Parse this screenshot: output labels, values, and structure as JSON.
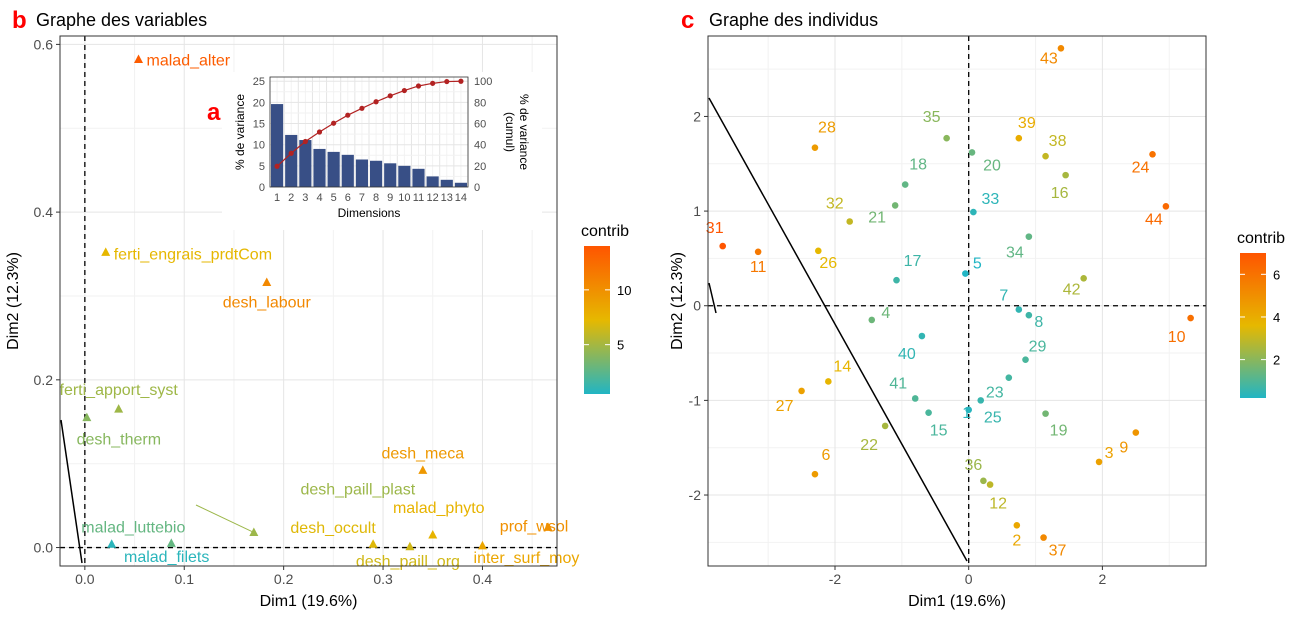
{
  "panel_b": {
    "letter": "b",
    "title": "Graphe des variables"
  },
  "panel_a": {
    "letter": "a"
  },
  "panel_c": {
    "letter": "c",
    "title": "Graphe des individus"
  },
  "colors": {
    "low": "#21b5c4",
    "mid": "#e6b800",
    "high": "#ff5500",
    "panel_letter": "#ff0000",
    "bar": "#384f86",
    "cumul_line": "#b22222"
  },
  "chart_data": [
    {
      "id": "variables",
      "type": "scatter",
      "xlabel": "Dim1 (19.6%)",
      "ylabel": "Dim2 (12.3%)",
      "xlim": [
        -0.025,
        0.475
      ],
      "ylim": [
        -0.022,
        0.61
      ],
      "xticks": [
        0.0,
        0.1,
        0.2,
        0.3,
        0.4
      ],
      "yticks": [
        0.0,
        0.2,
        0.4,
        0.6
      ],
      "tick_labels_x": [
        "0.0",
        "0.1",
        "0.2",
        "0.3",
        "0.4"
      ],
      "tick_labels_y": [
        "0.0",
        "0.2",
        "0.4",
        "0.6"
      ],
      "grid": true,
      "marker": "triangle",
      "legend": {
        "title": "contrib",
        "ticks": [
          5,
          10
        ],
        "tick_labels": [
          "5",
          "10"
        ],
        "range": [
          0.5,
          14
        ],
        "placement": "right"
      },
      "points": [
        {
          "label": "malad_alter",
          "x": 0.054,
          "y": 0.582,
          "contrib": 13.5
        },
        {
          "label": "ferti_engrais_prdtCom",
          "x": 0.021,
          "y": 0.352,
          "contrib": 7.3
        },
        {
          "label": "desh_labour",
          "x": 0.183,
          "y": 0.316,
          "contrib": 10.5
        },
        {
          "label": "ferti_apport_syst",
          "x": 0.034,
          "y": 0.165,
          "contrib": 4.8
        },
        {
          "label": "desh_therm",
          "x": 0.002,
          "y": 0.155,
          "contrib": 4.0
        },
        {
          "label": "desh_meca",
          "x": 0.34,
          "y": 0.092,
          "contrib": 9.4
        },
        {
          "label": "desh_paill_plast",
          "x": 0.17,
          "y": 0.018,
          "contrib": 4.7
        },
        {
          "label": "malad_phyto",
          "x": 0.35,
          "y": 0.015,
          "contrib": 7.6
        },
        {
          "label": "malad_luttebio",
          "x": 0.087,
          "y": 0.005,
          "contrib": 2.8
        },
        {
          "label": "desh_occult",
          "x": 0.29,
          "y": 0.004,
          "contrib": 7.0
        },
        {
          "label": "prof_wsol",
          "x": 0.466,
          "y": 0.024,
          "contrib": 10.0
        },
        {
          "label": "malad_filets",
          "x": 0.027,
          "y": 0.004,
          "contrib": 0.8
        },
        {
          "label": "desh_paill_org",
          "x": 0.327,
          "y": 0.001,
          "contrib": 6.5
        },
        {
          "label": "inter_surf_moy",
          "x": 0.4,
          "y": 0.002,
          "contrib": 8.5
        }
      ]
    },
    {
      "id": "scree",
      "type": "bar",
      "xlabel": "Dimensions",
      "ylabel": "% de variance",
      "y2label": "% de variance (cumul)",
      "categories": [
        "1",
        "2",
        "3",
        "4",
        "5",
        "6",
        "7",
        "8",
        "9",
        "10",
        "11",
        "12",
        "13",
        "14"
      ],
      "values": [
        19.6,
        12.3,
        11.1,
        9.0,
        8.3,
        7.6,
        6.5,
        6.2,
        5.6,
        5.0,
        4.3,
        2.5,
        1.7,
        1.0
      ],
      "cumulative": [
        19.6,
        31.9,
        43.0,
        52.0,
        60.3,
        67.9,
        74.4,
        80.6,
        86.2,
        91.2,
        95.5,
        98.0,
        99.7,
        100.0
      ],
      "ylim": [
        0,
        26
      ],
      "y2lim": [
        0,
        104
      ],
      "yticks": [
        0,
        5,
        10,
        15,
        20,
        25
      ],
      "y2ticks": [
        0,
        20,
        40,
        60,
        80,
        100
      ],
      "grid": true
    },
    {
      "id": "individuals",
      "type": "scatter",
      "xlabel": "Dim1 (19.6%)",
      "ylabel": "Dim2 (12.3%)",
      "xlim": [
        -3.9,
        3.55
      ],
      "ylim": [
        -2.75,
        2.85
      ],
      "xticks": [
        -2,
        0,
        2
      ],
      "yticks": [
        -2,
        -1,
        0,
        1,
        2
      ],
      "tick_labels_x": [
        "-2",
        "0",
        "2"
      ],
      "tick_labels_y": [
        "-2",
        "-1",
        "0",
        "1",
        "2"
      ],
      "grid": true,
      "marker": "circle",
      "legend": {
        "title": "contrib",
        "ticks": [
          2,
          4,
          6
        ],
        "tick_labels": [
          "2",
          "4",
          "6"
        ],
        "range": [
          0.2,
          7.0
        ],
        "placement": "right"
      },
      "points": [
        {
          "label": "43",
          "x": 1.38,
          "y": 2.72,
          "contrib": 5.2
        },
        {
          "label": "39",
          "x": 0.75,
          "y": 1.77,
          "contrib": 4.0
        },
        {
          "label": "38",
          "x": 1.15,
          "y": 1.58,
          "contrib": 3.0
        },
        {
          "label": "28",
          "x": -2.3,
          "y": 1.67,
          "contrib": 4.6
        },
        {
          "label": "35",
          "x": -0.33,
          "y": 1.77,
          "contrib": 2.0
        },
        {
          "label": "20",
          "x": 0.05,
          "y": 1.62,
          "contrib": 1.4
        },
        {
          "label": "24",
          "x": 2.75,
          "y": 1.6,
          "contrib": 6.0
        },
        {
          "label": "18",
          "x": -0.95,
          "y": 1.28,
          "contrib": 1.3
        },
        {
          "label": "16",
          "x": 1.45,
          "y": 1.38,
          "contrib": 2.5
        },
        {
          "label": "33",
          "x": 0.07,
          "y": 0.99,
          "contrib": 0.4
        },
        {
          "label": "44",
          "x": 2.95,
          "y": 1.05,
          "contrib": 6.3
        },
        {
          "label": "32",
          "x": -1.78,
          "y": 0.89,
          "contrib": 3.0
        },
        {
          "label": "21",
          "x": -1.1,
          "y": 1.06,
          "contrib": 1.6
        },
        {
          "label": "31",
          "x": -3.68,
          "y": 0.63,
          "contrib": 7.0
        },
        {
          "label": "11",
          "x": -3.15,
          "y": 0.57,
          "contrib": 5.8
        },
        {
          "label": "26",
          "x": -2.25,
          "y": 0.58,
          "contrib": 3.6
        },
        {
          "label": "34",
          "x": 0.9,
          "y": 0.73,
          "contrib": 1.3
        },
        {
          "label": "17",
          "x": -1.08,
          "y": 0.27,
          "contrib": 0.7
        },
        {
          "label": "5",
          "x": -0.05,
          "y": 0.34,
          "contrib": 0.2
        },
        {
          "label": "42",
          "x": 1.72,
          "y": 0.29,
          "contrib": 2.6
        },
        {
          "label": "7",
          "x": 0.75,
          "y": -0.04,
          "contrib": 0.5
        },
        {
          "label": "8",
          "x": 0.9,
          "y": -0.1,
          "contrib": 0.7
        },
        {
          "label": "4",
          "x": -1.45,
          "y": -0.15,
          "contrib": 1.5
        },
        {
          "label": "10",
          "x": 3.32,
          "y": -0.13,
          "contrib": 6.1
        },
        {
          "label": "40",
          "x": -0.7,
          "y": -0.32,
          "contrib": 0.5
        },
        {
          "label": "29",
          "x": 0.85,
          "y": -0.57,
          "contrib": 0.9
        },
        {
          "label": "14",
          "x": -2.1,
          "y": -0.8,
          "contrib": 3.7
        },
        {
          "label": "27",
          "x": -2.5,
          "y": -0.9,
          "contrib": 4.4
        },
        {
          "label": "23",
          "x": 0.6,
          "y": -0.76,
          "contrib": 0.8
        },
        {
          "label": "41",
          "x": -0.8,
          "y": -0.98,
          "contrib": 1.0
        },
        {
          "label": "1",
          "x": 0.0,
          "y": -1.1,
          "contrib": 0.3
        },
        {
          "label": "15",
          "x": -0.6,
          "y": -1.13,
          "contrib": 0.9
        },
        {
          "label": "25",
          "x": 0.18,
          "y": -1.0,
          "contrib": 0.6
        },
        {
          "label": "19",
          "x": 1.15,
          "y": -1.14,
          "contrib": 1.6
        },
        {
          "label": "22",
          "x": -1.25,
          "y": -1.27,
          "contrib": 2.5
        },
        {
          "label": "9",
          "x": 2.5,
          "y": -1.34,
          "contrib": 4.8
        },
        {
          "label": "3",
          "x": 1.95,
          "y": -1.65,
          "contrib": 4.4
        },
        {
          "label": "6",
          "x": -2.3,
          "y": -1.78,
          "contrib": 4.6
        },
        {
          "label": "36",
          "x": 0.22,
          "y": -1.85,
          "contrib": 2.3
        },
        {
          "label": "12",
          "x": 0.32,
          "y": -1.89,
          "contrib": 2.9
        },
        {
          "label": "2",
          "x": 0.72,
          "y": -2.32,
          "contrib": 4.2
        },
        {
          "label": "37",
          "x": 1.12,
          "y": -2.45,
          "contrib": 5.2
        }
      ]
    }
  ]
}
